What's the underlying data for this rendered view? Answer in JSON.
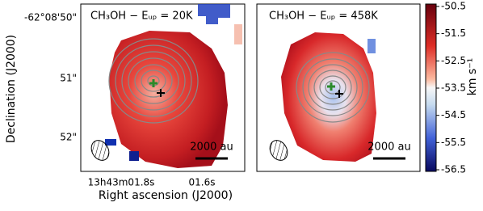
{
  "chart_data": [
    {
      "type": "image",
      "title": "CH₃OH − Eᵤₚ = 20K",
      "scale_label": "2000 au",
      "xlabel": "Right ascension (J2000)",
      "ylabel": "Declination (J2000)",
      "xtick_labels": [
        "13h43m01.8s",
        "01.6s"
      ],
      "ytick_labels": [
        "-62°08'50\"",
        "51\"",
        "52\""
      ]
    },
    {
      "type": "image",
      "title": "CH₃OH − Eᵤₚ = 458K",
      "scale_label": "2000 au"
    },
    {
      "type": "colorbar",
      "label": "km s⁻¹",
      "clim": [
        -56.5,
        -50.5
      ],
      "ticks": [
        -50.5,
        -51.5,
        -52.5,
        -53.5,
        -54.5,
        -55.5,
        -56.5
      ]
    }
  ]
}
